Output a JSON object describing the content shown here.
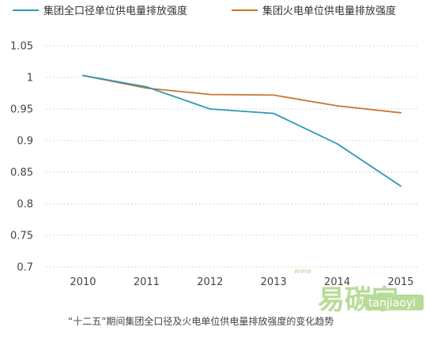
{
  "chart_data": {
    "type": "line",
    "title": "",
    "xlabel": "",
    "ylabel": "",
    "categories": [
      "2010",
      "2011",
      "2012",
      "2013",
      "2014",
      "2015"
    ],
    "yticks": [
      "0.7",
      "0.75",
      "0.8",
      "0.85",
      "0.9",
      "0.95",
      "1",
      "1.05"
    ],
    "ylim": [
      0.7,
      1.05
    ],
    "grid": "horizontal dotted",
    "legend_position": "top",
    "series": [
      {
        "name": "集团全口径单位供电量排放强度",
        "color": "#2E98B4",
        "values": [
          1.003,
          0.985,
          0.95,
          0.943,
          0.895,
          0.828
        ]
      },
      {
        "name": "集团火电单位供电量排放强度",
        "color": "#C8772C",
        "values": [
          1.003,
          0.983,
          0.973,
          0.972,
          0.955,
          0.944
        ]
      }
    ],
    "caption": "“十二五”期间集团全口径及火电单位供电量排放强度的变化趋势"
  },
  "watermark": {
    "text": "易碳家",
    "site": "tanjiaoyi",
    "domain": ".com",
    "small": "www"
  }
}
